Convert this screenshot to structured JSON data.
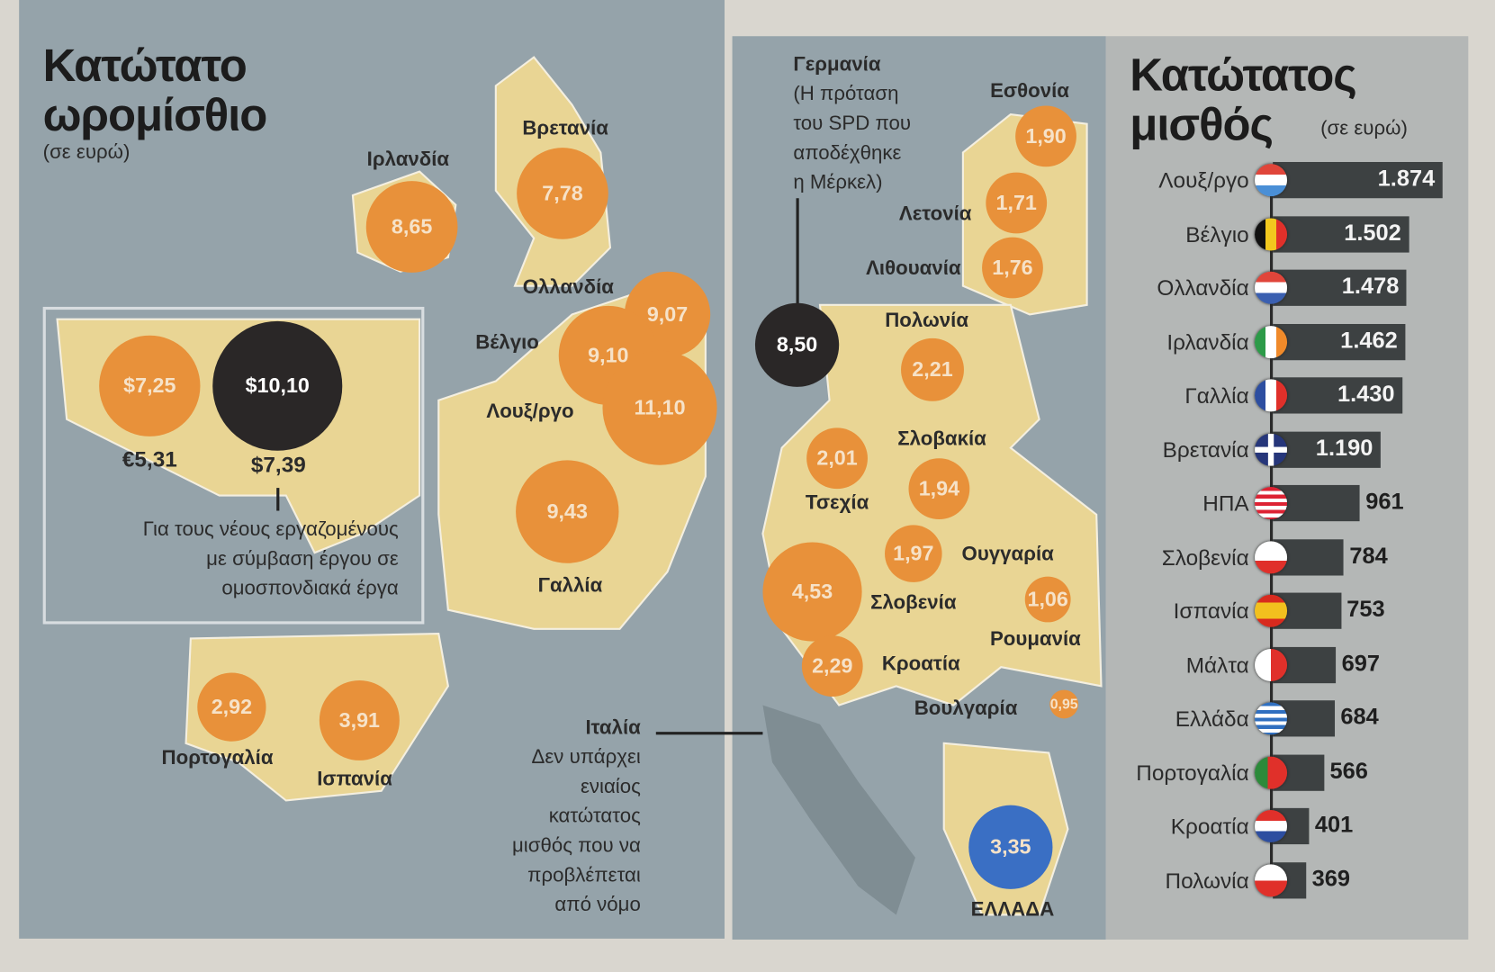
{
  "left_map": {
    "title_line1": "Κατώτατο",
    "title_line2": "ωρομίσθιο",
    "unit": "(σε ευρώ)",
    "bubbles": [
      {
        "label": "Ιρλανδία",
        "value": "8,65",
        "color": "#e8913a"
      },
      {
        "label": "Βρετανία",
        "value": "7,78",
        "color": "#e8913a"
      },
      {
        "label": "Ολλανδία",
        "value": "9,07",
        "color": "#e8913a"
      },
      {
        "label": "Βέλγιο",
        "value": "9,10",
        "color": "#e8913a"
      },
      {
        "label": "Λουξ/ργο",
        "value": "11,10",
        "color": "#e8913a"
      },
      {
        "label": "Γαλλία",
        "value": "9,43",
        "color": "#e8913a"
      },
      {
        "label": "Πορτογαλία",
        "value": "2,92",
        "color": "#e8913a"
      },
      {
        "label": "Ισπανία",
        "value": "3,91",
        "color": "#e8913a"
      }
    ],
    "usa_inset": {
      "current_usd": "$7,25",
      "current_eur": "€5,31",
      "proposed_usd": "$10,10",
      "proposed_eur": "$7,39",
      "note": [
        "Για τους νέους εργαζομένους",
        "με σύμβαση έργου σε",
        "ομοσπονδιακά έργα"
      ]
    },
    "italy_note": {
      "title": "Ιταλία",
      "lines": [
        "Δεν υπάρχει",
        "ενιαίος",
        "κατώτατος",
        "μισθός που να",
        "προβλέπεται",
        "από νόμο"
      ]
    }
  },
  "right_map": {
    "germany_note": {
      "title": "Γερμανία",
      "lines": [
        "(Η πρόταση",
        "του SPD που",
        "αποδέχθηκε",
        "η Μέρκελ)"
      ],
      "value": "8,50",
      "color": "#2a2727"
    },
    "bubbles": [
      {
        "label": "Εσθονία",
        "value": "1,90",
        "color": "#e8913a"
      },
      {
        "label": "Λετονία",
        "value": "1,71",
        "color": "#e8913a"
      },
      {
        "label": "Λιθουανία",
        "value": "1,76",
        "color": "#e8913a"
      },
      {
        "label": "Πολωνία",
        "value": "2,21",
        "color": "#e8913a"
      },
      {
        "label": "Τσεχία",
        "value": "2,01",
        "color": "#e8913a"
      },
      {
        "label": "Σλοβακία",
        "value": "1,94",
        "color": "#e8913a"
      },
      {
        "label": "Ουγγαρία",
        "value": "1,97",
        "color": "#e8913a"
      },
      {
        "label": "Σλοβενία",
        "value": "4,53",
        "color": "#e8913a"
      },
      {
        "label": "Ρουμανία",
        "value": "1,06",
        "color": "#e8913a"
      },
      {
        "label": "Κροατία",
        "value": "2,29",
        "color": "#e8913a"
      },
      {
        "label": "Βουλγαρία",
        "value": "0,95",
        "color": "#e8913a"
      },
      {
        "label": "ΕΛΛΑΔΑ",
        "value": "3,35",
        "color": "#3a6fc4"
      }
    ]
  },
  "chart_data": {
    "type": "bar",
    "orientation": "horizontal",
    "title": "Κατώτατος μισθός",
    "unit": "(σε ευρώ)",
    "categories": [
      "Λουξ/ργο",
      "Βέλγιο",
      "Ολλανδία",
      "Ιρλανδία",
      "Γαλλία",
      "Βρετανία",
      "ΗΠΑ",
      "Σλοβενία",
      "Ισπανία",
      "Μάλτα",
      "Ελλάδα",
      "Πορτογαλία",
      "Κροατία",
      "Πολωνία"
    ],
    "values": [
      1874,
      1502,
      1478,
      1462,
      1430,
      1190,
      961,
      784,
      753,
      697,
      684,
      566,
      401,
      369
    ],
    "value_labels": [
      "1.874",
      "1.502",
      "1.478",
      "1.462",
      "1.430",
      "1.190",
      "961",
      "784",
      "753",
      "697",
      "684",
      "566",
      "401",
      "369"
    ],
    "flags": [
      "lu",
      "be",
      "nl",
      "ie",
      "fr",
      "gb",
      "us",
      "si",
      "es",
      "mt",
      "gr",
      "pt",
      "hr",
      "pl"
    ],
    "bar_color": "#3d4142"
  },
  "colors": {
    "sea": "#95a3aa",
    "land": "#e9d594",
    "orange": "#e8913a",
    "panel": "#b4b7b6"
  }
}
